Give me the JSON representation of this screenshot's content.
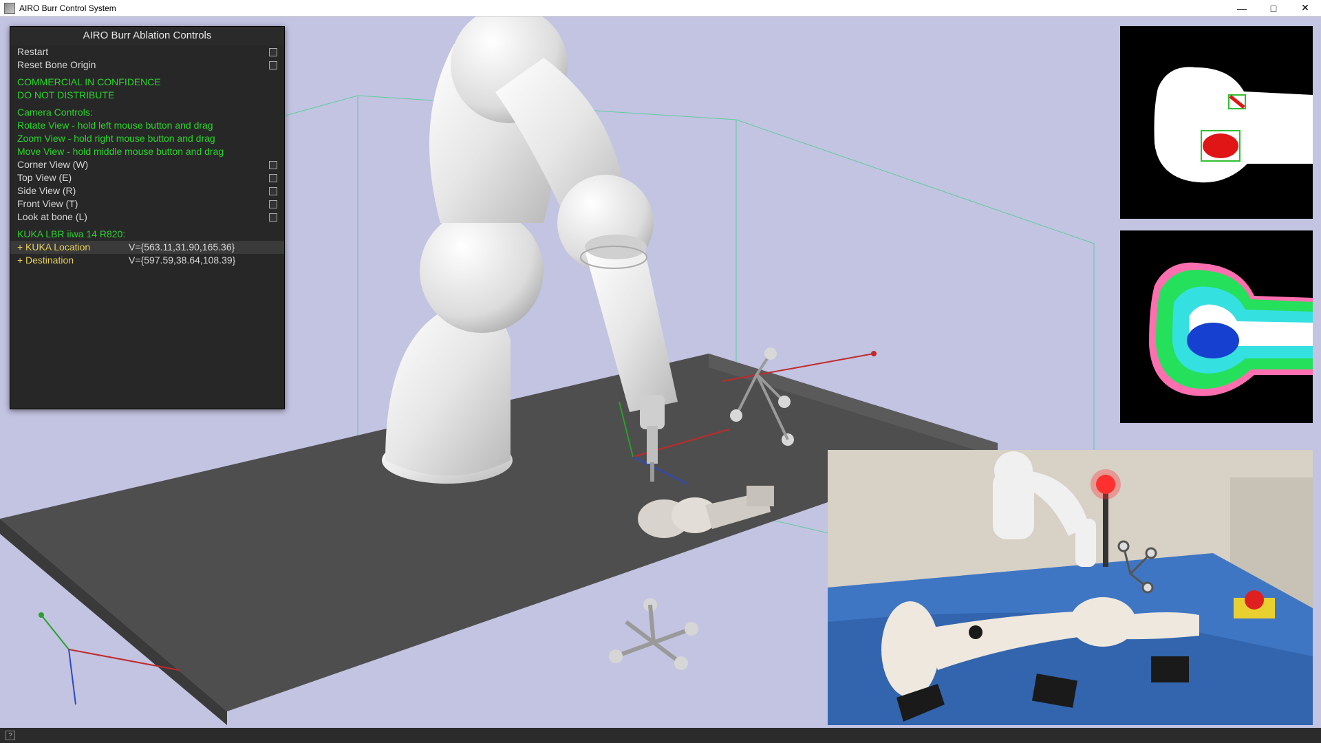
{
  "window": {
    "title": "AIRO Burr Control System"
  },
  "panel": {
    "title": "AIRO Burr Ablation Controls",
    "actions": [
      {
        "label": "Restart"
      },
      {
        "label": "Reset Bone Origin"
      }
    ],
    "warning_lines": [
      "COMMERCIAL IN CONFIDENCE",
      "DO NOT DISTRIBUTE"
    ],
    "camera_header": "Camera Controls:",
    "camera_help": [
      "Rotate View - hold left mouse button and drag",
      "Zoom View - hold right mouse button and drag",
      "Move View - hold middle mouse button and drag"
    ],
    "camera_views": [
      {
        "label": "Corner View (W)"
      },
      {
        "label": "Top View (E)"
      },
      {
        "label": "Side View (R)"
      },
      {
        "label": "Front View (T)"
      },
      {
        "label": "Look at bone (L)"
      }
    ],
    "robot_header": "KUKA LBR iiwa 14 R820:",
    "robot_rows": [
      {
        "key": "KUKA Location",
        "value": "V={563.11,31.90,165.36}",
        "selected": true
      },
      {
        "key": "Destination",
        "value": "V={597.59,38.64,108.39}",
        "selected": false
      }
    ]
  },
  "scene": {
    "background": "#c3c3e2",
    "table_color": "#4e4e4e",
    "grid_color": "#2fd47f",
    "axis_x_color": "#c02a2a",
    "axis_y_color": "#2aa02a",
    "axis_z_color": "#2a4ac0",
    "robot_light": "#f2f2f2",
    "robot_shadow": "#bdbdbd",
    "robot_dark": "#8c8c8c"
  },
  "thumbnails": {
    "bone_mask": {
      "bg": "#000000",
      "bone_color": "#ffffff",
      "marker_box_color": "#2fbf2f",
      "marker_fill_color": "#e01515"
    },
    "bone_heat": {
      "bg": "#000000",
      "c_outer": "#ff6fb0",
      "c_green": "#25e05a",
      "c_cyan": "#35e0e0",
      "c_blue": "#1540d0",
      "c_white": "#ffffff"
    }
  },
  "camera_feed": {
    "drape_color": "#3f76c4",
    "drape_shadow": "#2a5aa0",
    "wall_color": "#d7d1c6",
    "floor_color": "#a8a090",
    "robot_color": "#f0f0f0",
    "estop_red": "#e02020",
    "estop_yellow": "#e8d030",
    "leg_color": "#efe8de",
    "clamp_color": "#1a1a1a"
  },
  "statusbar": {
    "help": "?"
  }
}
